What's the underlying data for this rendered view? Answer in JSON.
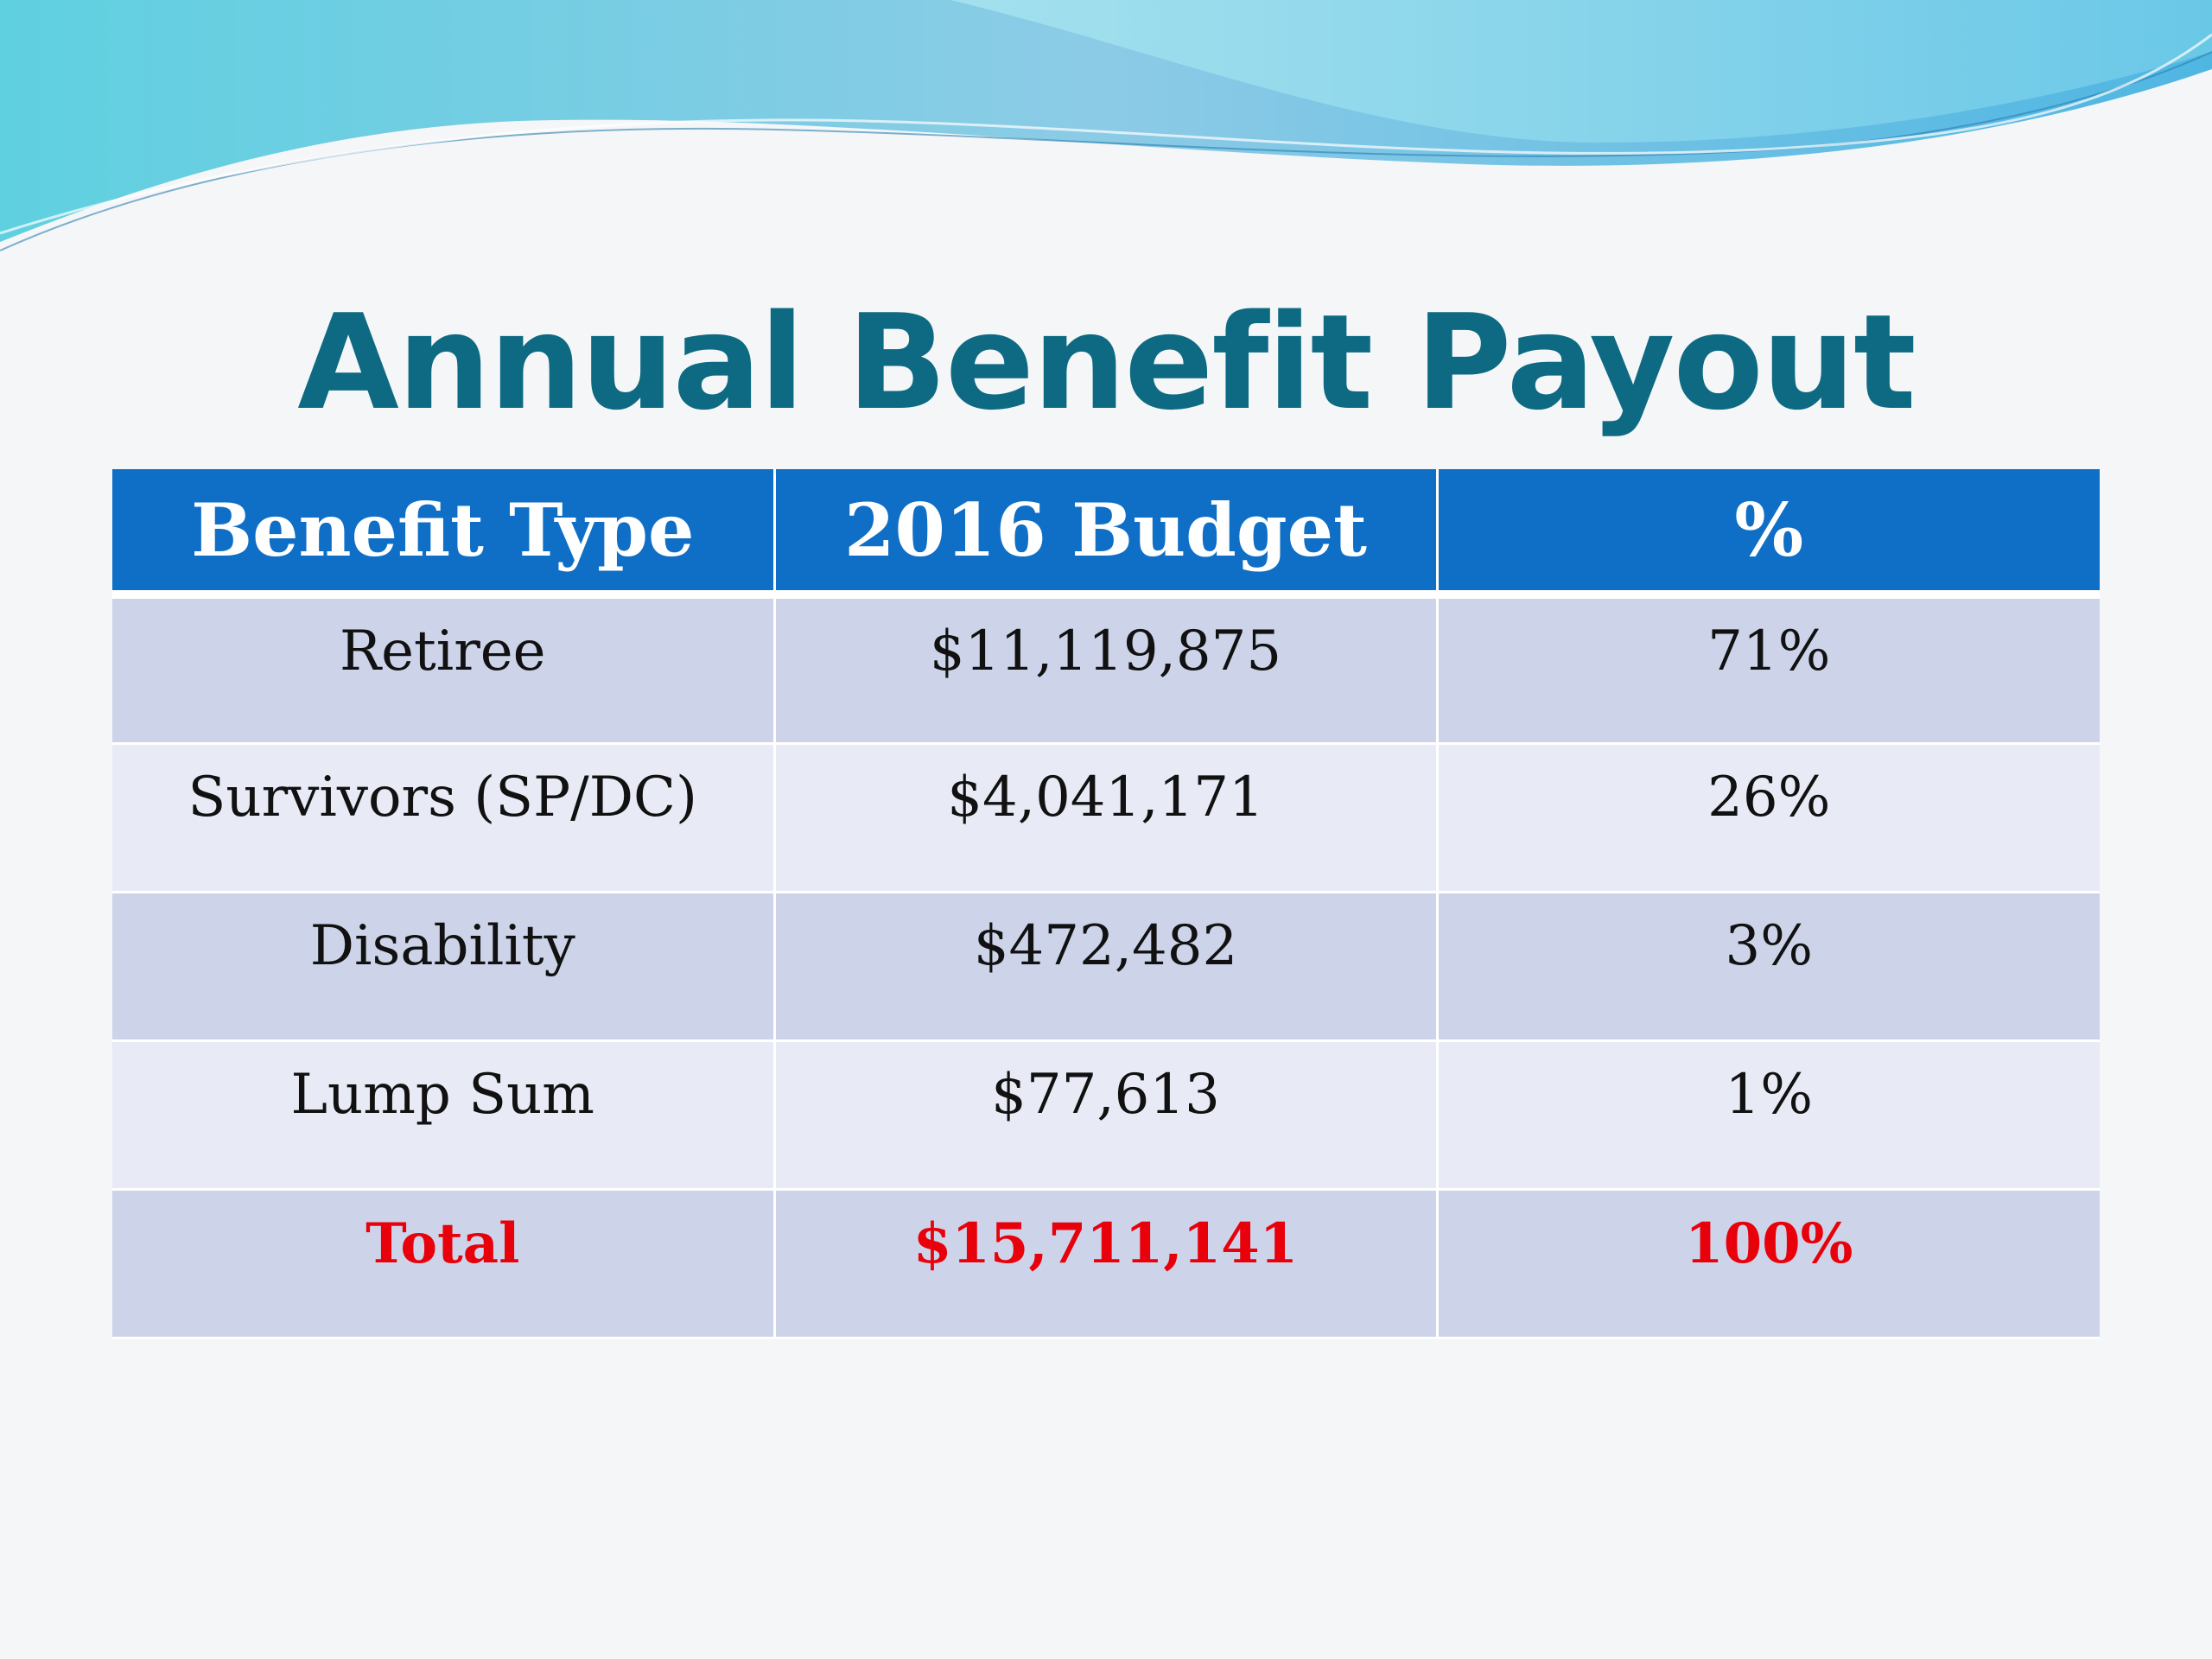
{
  "slide": {
    "title": "Annual Benefit Payout"
  },
  "colors": {
    "title": "#0d6a82",
    "header_bg": "#0f6fc6",
    "row_dark": "#cdd4e9",
    "row_light": "#e8ebf5",
    "total_text": "#e8000b"
  },
  "table": {
    "headers": [
      "Benefit Type",
      "2016 Budget",
      "%"
    ],
    "rows": [
      [
        "Retiree",
        "$11,119,875",
        "71%"
      ],
      [
        "Survivors (SP/DC)",
        "$4,041,171",
        "26%"
      ],
      [
        "Disability",
        "$472,482",
        "3%"
      ],
      [
        "Lump Sum",
        "$77,613",
        "1%"
      ]
    ],
    "total": [
      "Total",
      "$15,711,141",
      "100%"
    ]
  }
}
